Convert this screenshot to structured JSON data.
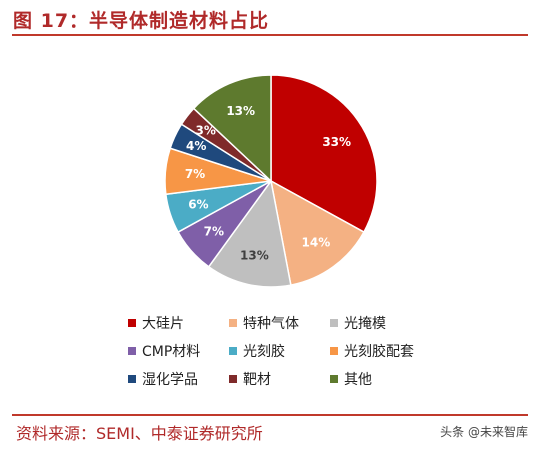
{
  "header": {
    "title": "图 17：半导体制造材料占比"
  },
  "chart_data": {
    "type": "pie",
    "title": "",
    "slices": [
      {
        "label": "大硅片",
        "value": 33,
        "display": "33%",
        "color": "#c00000",
        "label_color": "#ffffff"
      },
      {
        "label": "特种气体",
        "value": 14,
        "display": "14%",
        "color": "#f4b183",
        "label_color": "#ffffff"
      },
      {
        "label": "光掩模",
        "value": 13,
        "display": "13%",
        "color": "#bfbfbf",
        "label_color": "#404040"
      },
      {
        "label": "CMP材料",
        "value": 7,
        "display": "7%",
        "color": "#7f5fa8",
        "label_color": "#ffffff"
      },
      {
        "label": "光刻胶",
        "value": 6,
        "display": "6%",
        "color": "#4bacc6",
        "label_color": "#ffffff"
      },
      {
        "label": "光刻胶配套",
        "value": 7,
        "display": "7%",
        "color": "#f79646",
        "label_color": "#ffffff"
      },
      {
        "label": "湿化学品",
        "value": 4,
        "display": "4%",
        "color": "#1f497d",
        "label_color": "#ffffff"
      },
      {
        "label": "靶材",
        "value": 3,
        "display": "3%",
        "color": "#7f2a2a",
        "label_color": "#ffffff"
      },
      {
        "label": "其他",
        "value": 13,
        "display": "13%",
        "color": "#5e7a2e",
        "label_color": "#ffffff"
      }
    ],
    "start_angle_deg": 0,
    "direction": "clockwise",
    "legend_placement": "bottom"
  },
  "footer": {
    "source": "资料来源：SEMI、中泰证券研究所",
    "watermark": "头条 @未来智库"
  }
}
